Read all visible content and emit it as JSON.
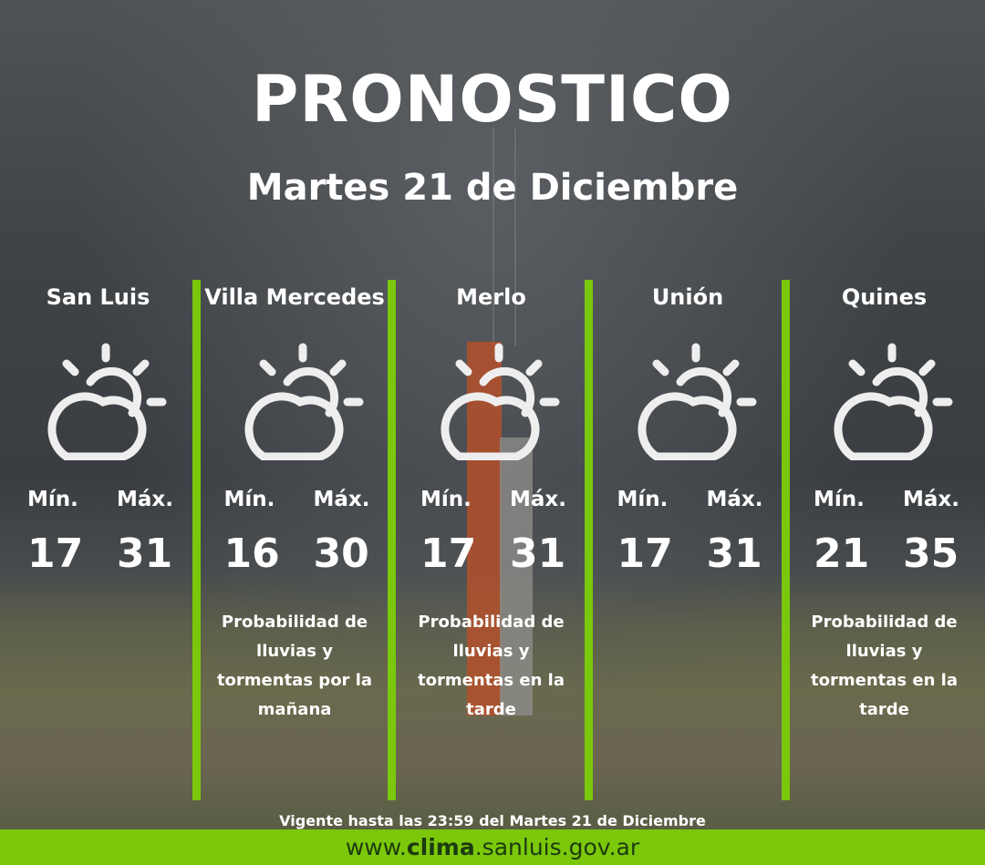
{
  "title": "PRONOSTICO",
  "date": "Martes 21 de Diciembre",
  "min_label": "Mín.",
  "max_label": "Máx.",
  "accent_color": "#7bc80a",
  "icon": "partly-cloudy-icon",
  "cities": [
    {
      "name": "San Luis",
      "min": "17",
      "max": "31",
      "note": ""
    },
    {
      "name": "Villa Mercedes",
      "min": "16",
      "max": "30",
      "note": "Probabilidad de lluvias y tormentas por la mañana"
    },
    {
      "name": "Merlo",
      "min": "17",
      "max": "31",
      "note": "Probabilidad de lluvias y tormentas en la tarde"
    },
    {
      "name": "Unión",
      "min": "17",
      "max": "31",
      "note": ""
    },
    {
      "name": "Quines",
      "min": "21",
      "max": "35",
      "note": "Probabilidad de lluvias y tormentas en la tarde"
    }
  ],
  "validity": "Vigente hasta las 23:59 del Martes 21 de Diciembre",
  "footer": {
    "prefix": "www.",
    "bold": "clima",
    "suffix": ".sanluis.gov.ar"
  }
}
